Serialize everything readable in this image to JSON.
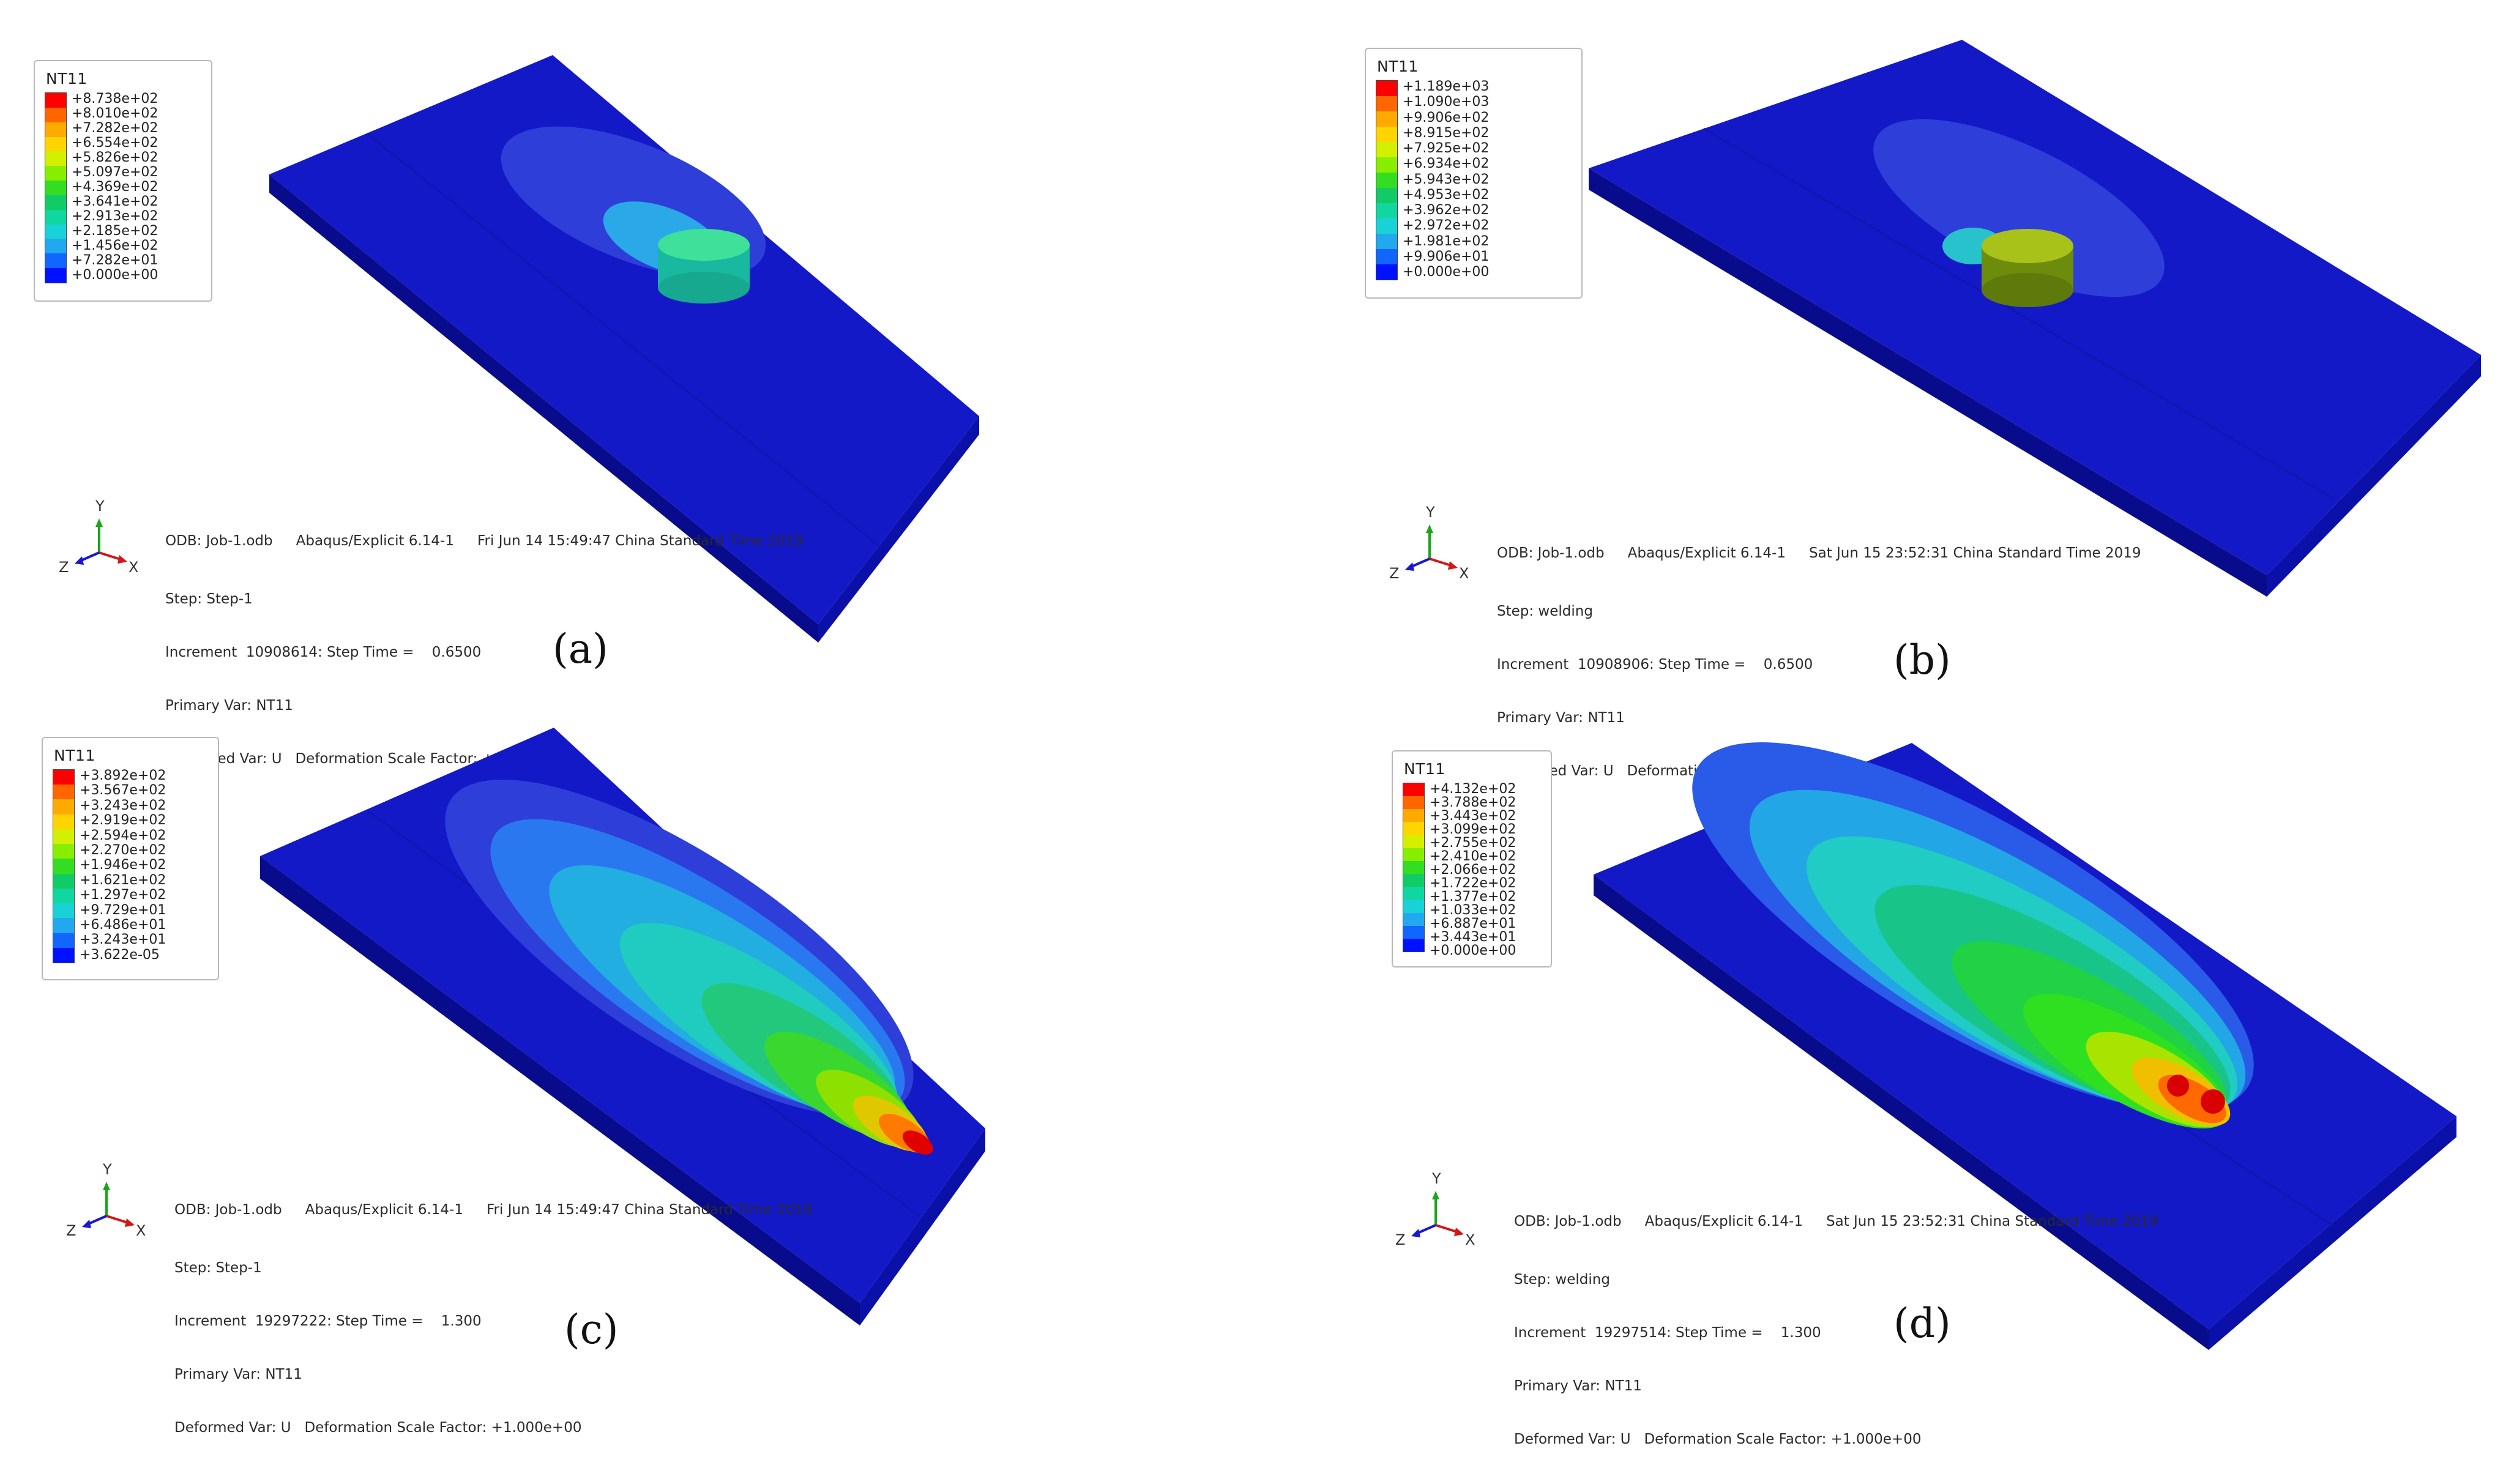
{
  "colors": {
    "plate_top": "#1419c8",
    "plate_side": "#0b10a8",
    "plate_front": "#080c8c",
    "legend_scale": [
      "#ff0000",
      "#ff6600",
      "#ffaa00",
      "#ffd400",
      "#d2f000",
      "#88ee00",
      "#33dd22",
      "#11cc66",
      "#10d6a0",
      "#18d2d8",
      "#22a8ee",
      "#1166ff",
      "#0011ff"
    ]
  },
  "panels": [
    {
      "caption": "(a)",
      "legend": {
        "title": "NT11",
        "labels": [
          "+8.738e+02",
          "+8.010e+02",
          "+7.282e+02",
          "+6.554e+02",
          "+5.826e+02",
          "+5.097e+02",
          "+4.369e+02",
          "+3.641e+02",
          "+2.913e+02",
          "+2.185e+02",
          "+1.456e+02",
          "+7.282e+01",
          "+0.000e+00"
        ]
      },
      "info": {
        "odb": "ODB: Job-1.odb",
        "solver": "Abaqus/Explicit 6.14-1",
        "date": "Fri Jun 14 15:49:47 China Standard Time 2019",
        "step": "Step: Step-1",
        "increment": "Increment  10908614: Step Time =    0.6500",
        "primary": "Primary Var: NT11",
        "deformed": "Deformed Var: U   Deformation Scale Factor: +1.000e+00"
      },
      "axes": {
        "y": "Y",
        "z": "Z",
        "x": "X"
      }
    },
    {
      "caption": "(b)",
      "legend": {
        "title": "NT11",
        "labels": [
          "+1.189e+03",
          "+1.090e+03",
          "+9.906e+02",
          "+8.915e+02",
          "+7.925e+02",
          "+6.934e+02",
          "+5.943e+02",
          "+4.953e+02",
          "+3.962e+02",
          "+2.972e+02",
          "+1.981e+02",
          "+9.906e+01",
          "+0.000e+00"
        ]
      },
      "info": {
        "odb": "ODB: Job-1.odb",
        "solver": "Abaqus/Explicit 6.14-1",
        "date": "Sat Jun 15 23:52:31 China Standard Time 2019",
        "step": "Step: welding",
        "increment": "Increment  10908906: Step Time =    0.6500",
        "primary": "Primary Var: NT11",
        "deformed": "Deformed Var: U   Deformation Scale Factor: +1.000e+00"
      },
      "axes": {
        "y": "Y",
        "z": "Z",
        "x": "X"
      }
    },
    {
      "caption": "(c)",
      "legend": {
        "title": "NT11",
        "labels": [
          "+3.892e+02",
          "+3.567e+02",
          "+3.243e+02",
          "+2.919e+02",
          "+2.594e+02",
          "+2.270e+02",
          "+1.946e+02",
          "+1.621e+02",
          "+1.297e+02",
          "+9.729e+01",
          "+6.486e+01",
          "+3.243e+01",
          "+3.622e-05"
        ]
      },
      "info": {
        "odb": "ODB: Job-1.odb",
        "solver": "Abaqus/Explicit 6.14-1",
        "date": "Fri Jun 14 15:49:47 China Standard Time 2019",
        "step": "Step: Step-1",
        "increment": "Increment  19297222: Step Time =    1.300",
        "primary": "Primary Var: NT11",
        "deformed": "Deformed Var: U   Deformation Scale Factor: +1.000e+00"
      },
      "axes": {
        "y": "Y",
        "z": "Z",
        "x": "X"
      }
    },
    {
      "caption": "(d)",
      "legend": {
        "title": "NT11",
        "labels": [
          "+4.132e+02",
          "+3.788e+02",
          "+3.443e+02",
          "+3.099e+02",
          "+2.755e+02",
          "+2.410e+02",
          "+2.066e+02",
          "+1.722e+02",
          "+1.377e+02",
          "+1.033e+02",
          "+6.887e+01",
          "+3.443e+01",
          "+0.000e+00"
        ]
      },
      "info": {
        "odb": "ODB: Job-1.odb",
        "solver": "Abaqus/Explicit 6.14-1",
        "date": "Sat Jun 15 23:52:31 China Standard Time 2019",
        "step": "Step: welding",
        "increment": "Increment  19297514: Step Time =    1.300",
        "primary": "Primary Var: NT11",
        "deformed": "Deformed Var: U   Deformation Scale Factor: +1.000e+00"
      },
      "axes": {
        "y": "Y",
        "z": "Z",
        "x": "X"
      }
    }
  ]
}
